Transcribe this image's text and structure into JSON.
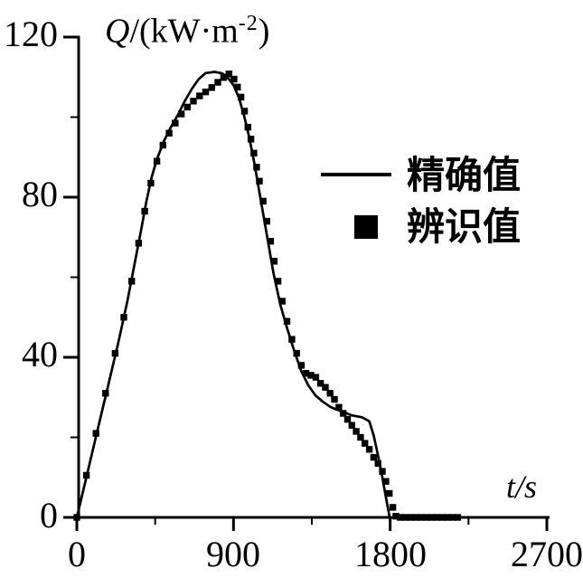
{
  "figure": {
    "background": "#ffffff",
    "ink_color": "#000000"
  },
  "chart_data": {
    "type": "line",
    "title": "",
    "ylabel": {
      "text": "Q/(kW·m⁻²)",
      "parts": {
        "symbol": "Q",
        "mid": "/(kW·m",
        "sup": "-2",
        "close": ")"
      }
    },
    "xlabel": {
      "text": "t/s",
      "parts": {
        "symbol": "t",
        "unit": "/s"
      }
    },
    "xlim": [
      0,
      2700
    ],
    "ylim": [
      0,
      120
    ],
    "x_ticks": [
      0,
      900,
      1800,
      2700
    ],
    "x_minor_ticks": [
      450,
      1350,
      2250
    ],
    "y_ticks": [
      0,
      40,
      80,
      120
    ],
    "y_minor_ticks": [
      20,
      60,
      100
    ],
    "x_tick_labels": [
      "0",
      "900",
      "1800",
      "2700"
    ],
    "y_tick_labels_top_to_bottom": [
      "120",
      "80",
      "40",
      "0"
    ],
    "grid": false,
    "legend": {
      "position": "right-middle",
      "entries": [
        {
          "label": "精确值",
          "marker": "line"
        },
        {
          "label": "辨识值",
          "marker": "filled-square"
        }
      ]
    },
    "series": [
      {
        "name": "精确值",
        "type": "line",
        "color": "#000000",
        "points": [
          [
            0,
            0
          ],
          [
            60,
            11
          ],
          [
            120,
            22
          ],
          [
            180,
            33
          ],
          [
            240,
            44
          ],
          [
            290,
            54
          ],
          [
            330,
            63
          ],
          [
            370,
            72
          ],
          [
            400,
            79
          ],
          [
            430,
            85
          ],
          [
            460,
            89.5
          ],
          [
            500,
            94
          ],
          [
            540,
            97.5
          ],
          [
            580,
            100.5
          ],
          [
            620,
            104
          ],
          [
            660,
            107
          ],
          [
            700,
            109.5
          ],
          [
            740,
            111
          ],
          [
            790,
            111.3
          ],
          [
            830,
            111
          ],
          [
            860,
            110.3
          ],
          [
            900,
            108
          ],
          [
            930,
            105
          ],
          [
            960,
            100.5
          ],
          [
            990,
            95
          ],
          [
            1020,
            88.5
          ],
          [
            1050,
            81
          ],
          [
            1090,
            71
          ],
          [
            1130,
            61
          ],
          [
            1170,
            53
          ],
          [
            1210,
            47
          ],
          [
            1250,
            41.5
          ],
          [
            1290,
            36.5
          ],
          [
            1330,
            33
          ],
          [
            1370,
            30.5
          ],
          [
            1410,
            29
          ],
          [
            1460,
            27.5
          ],
          [
            1520,
            26.5
          ],
          [
            1580,
            25.5
          ],
          [
            1640,
            25
          ],
          [
            1680,
            24
          ],
          [
            1705,
            20.5
          ],
          [
            1730,
            15.5
          ],
          [
            1755,
            10
          ],
          [
            1778,
            4.5
          ],
          [
            1797,
            0
          ],
          [
            1810,
            0
          ]
        ]
      },
      {
        "name": "辨识值",
        "type": "scatter",
        "marker": "square",
        "color": "#000000",
        "points": [
          [
            0,
            0
          ],
          [
            55,
            10.5
          ],
          [
            110,
            21
          ],
          [
            165,
            31
          ],
          [
            220,
            41
          ],
          [
            270,
            50
          ],
          [
            315,
            59
          ],
          [
            355,
            68.5
          ],
          [
            390,
            76.5
          ],
          [
            425,
            83.5
          ],
          [
            460,
            89
          ],
          [
            495,
            93
          ],
          [
            530,
            96
          ],
          [
            565,
            98.5
          ],
          [
            600,
            100.8
          ],
          [
            635,
            102.5
          ],
          [
            670,
            104
          ],
          [
            705,
            105.3
          ],
          [
            740,
            106.3
          ],
          [
            775,
            107.4
          ],
          [
            810,
            108.7
          ],
          [
            843,
            109.9
          ],
          [
            874,
            110.8
          ],
          [
            903,
            109.5
          ],
          [
            923,
            107.5
          ],
          [
            943,
            105
          ],
          [
            963,
            101.5
          ],
          [
            983,
            97.5
          ],
          [
            1000,
            94.5
          ],
          [
            1017,
            91
          ],
          [
            1033,
            87.5
          ],
          [
            1049,
            84
          ],
          [
            1070,
            79
          ],
          [
            1092,
            74
          ],
          [
            1113,
            69
          ],
          [
            1134,
            64
          ],
          [
            1156,
            59
          ],
          [
            1180,
            54
          ],
          [
            1207,
            49
          ],
          [
            1235,
            44.5
          ],
          [
            1263,
            41
          ],
          [
            1290,
            38
          ],
          [
            1317,
            36
          ],
          [
            1345,
            35.5
          ],
          [
            1373,
            35
          ],
          [
            1400,
            33.5
          ],
          [
            1428,
            32.5
          ],
          [
            1455,
            31
          ],
          [
            1480,
            29.5
          ],
          [
            1505,
            27.5
          ],
          [
            1530,
            26
          ],
          [
            1555,
            24.5
          ],
          [
            1580,
            23
          ],
          [
            1605,
            21.5
          ],
          [
            1630,
            20
          ],
          [
            1655,
            18.5
          ],
          [
            1680,
            17
          ],
          [
            1705,
            15
          ],
          [
            1730,
            13.5
          ],
          [
            1755,
            11.5
          ],
          [
            1775,
            9
          ],
          [
            1795,
            6
          ],
          [
            1815,
            2.5
          ],
          [
            1833,
            0.3
          ],
          [
            1858,
            0
          ],
          [
            1888,
            0
          ],
          [
            1918,
            0
          ],
          [
            1948,
            0
          ],
          [
            1978,
            0
          ],
          [
            2008,
            0
          ],
          [
            2038,
            0
          ],
          [
            2068,
            0
          ],
          [
            2098,
            0
          ],
          [
            2128,
            0
          ],
          [
            2158,
            0
          ],
          [
            2188,
            0
          ]
        ]
      }
    ]
  }
}
